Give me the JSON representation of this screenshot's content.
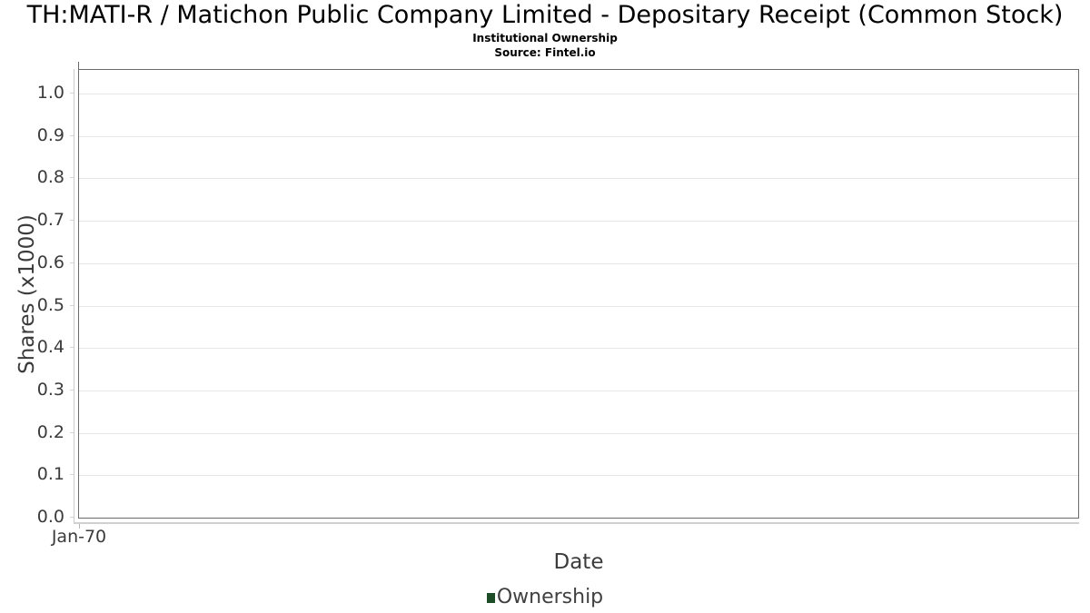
{
  "header": {
    "title": "TH:MATI-R / Matichon Public Company Limited - Depositary Receipt (Common Stock)",
    "subtitle": "Institutional Ownership",
    "source": "Source: Fintel.io"
  },
  "chart_data": {
    "type": "line",
    "title": "TH:MATI-R / Matichon Public Company Limited - Depositary Receipt (Common Stock)",
    "subtitle": "Institutional Ownership",
    "source": "Source: Fintel.io",
    "xlabel": "Date",
    "ylabel": "Shares (x1000)",
    "ylim": [
      0.0,
      1.05
    ],
    "grid": true,
    "yticks": [
      {
        "value": 1.0,
        "label": "1.0"
      },
      {
        "value": 0.9,
        "label": "0.9"
      },
      {
        "value": 0.8,
        "label": "0.8"
      },
      {
        "value": 0.7,
        "label": "0.7"
      },
      {
        "value": 0.6,
        "label": "0.6"
      },
      {
        "value": 0.5,
        "label": "0.5"
      },
      {
        "value": 0.4,
        "label": "0.4"
      },
      {
        "value": 0.3,
        "label": "0.3"
      },
      {
        "value": 0.2,
        "label": "0.2"
      },
      {
        "value": 0.1,
        "label": "0.1"
      },
      {
        "value": 0.0,
        "label": "0.0"
      }
    ],
    "xticks": [
      {
        "label": "Jan-70",
        "position": 0
      }
    ],
    "legend": {
      "position": "bottom-center",
      "entries": [
        {
          "label": "Ownership",
          "marker": "square",
          "color": "#1d4d26"
        }
      ]
    },
    "series": [
      {
        "name": "Ownership",
        "color": "#1d4d26",
        "x": [],
        "y": []
      }
    ]
  },
  "colors": {
    "background": "#ffffff",
    "plot_border": "#6b6b6b",
    "gridline": "#e6e6e6",
    "axis_line": "#d0d0d0",
    "tick_text": "#3b3b3b",
    "title_text": "#000000",
    "legend_marker": "#1d4d26"
  }
}
